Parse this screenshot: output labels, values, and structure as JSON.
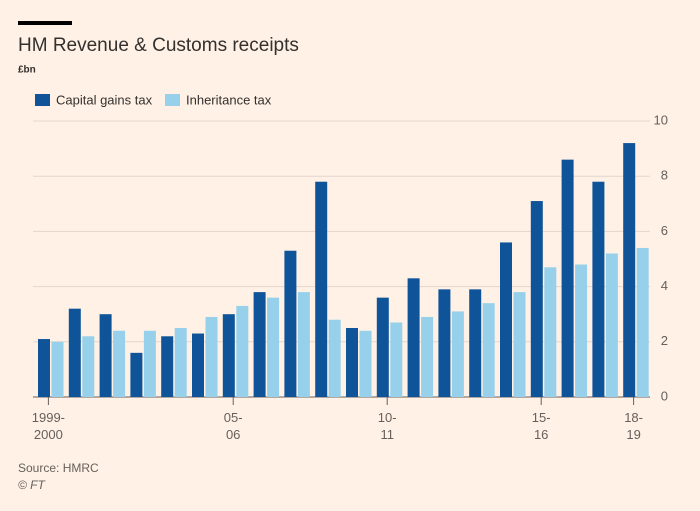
{
  "chart_data": {
    "type": "bar",
    "title": "HM Revenue & Customs receipts",
    "subtitle": "£bn",
    "categories": [
      "1999-\n2000",
      null,
      null,
      null,
      null,
      null,
      "05-\n06",
      null,
      null,
      null,
      null,
      "10-\n11",
      null,
      null,
      null,
      null,
      "15-\n16",
      null,
      null,
      "18-\n19"
    ],
    "series": [
      {
        "name": "Capital gains tax",
        "color": "#0f5499",
        "values": [
          2.1,
          3.2,
          3.0,
          1.6,
          2.2,
          2.3,
          3.0,
          3.8,
          5.3,
          7.8,
          2.5,
          3.6,
          4.3,
          3.9,
          3.9,
          5.6,
          7.1,
          8.6,
          7.8,
          9.2
        ]
      },
      {
        "name": "Inheritance tax",
        "color": "#96d0ea",
        "values": [
          2.0,
          2.2,
          2.4,
          2.4,
          2.5,
          2.9,
          3.3,
          3.6,
          3.8,
          2.8,
          2.4,
          2.7,
          2.9,
          3.1,
          3.4,
          3.8,
          4.7,
          4.8,
          5.2,
          5.4
        ]
      }
    ],
    "ylim": [
      0,
      10
    ],
    "yticks": [
      0,
      2,
      4,
      6,
      8,
      10
    ],
    "grid": true,
    "source": "Source: HMRC",
    "credit": "© FT"
  }
}
